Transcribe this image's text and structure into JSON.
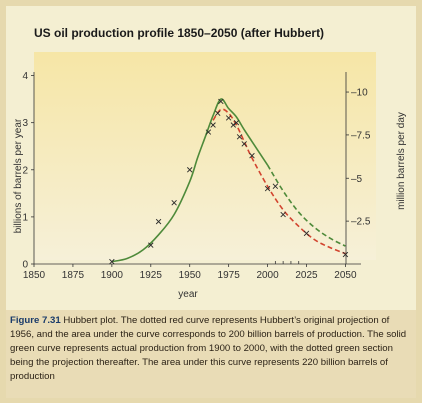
{
  "chart_data": {
    "type": "line",
    "title": "US oil production profile 1850–2050 (after Hubbert)",
    "xlabel": "year",
    "ylabel_left": "billions of barrels per year",
    "ylabel_right": "million barrels per day",
    "xlim": [
      1850,
      2060
    ],
    "ylim": [
      0,
      4.5
    ],
    "x_ticks": [
      1850,
      1875,
      1900,
      1925,
      1950,
      1975,
      2000,
      2025,
      2050
    ],
    "y_ticks_left": [
      0,
      1,
      2,
      3,
      4
    ],
    "y_ticks_right": [
      {
        "label": "–2.5",
        "value": 0.91
      },
      {
        "label": "–5",
        "value": 1.82
      },
      {
        "label": "–7.5",
        "value": 2.74
      },
      {
        "label": "–10",
        "value": 3.65
      }
    ],
    "series": [
      {
        "name": "actual production",
        "color": "#4e8a3a",
        "style": "solid",
        "x": [
          1900,
          1910,
          1920,
          1930,
          1940,
          1950,
          1955,
          1960,
          1965,
          1970,
          1975,
          1980,
          1985,
          1990,
          1995,
          2000
        ],
        "y": [
          0.05,
          0.12,
          0.3,
          0.62,
          1.05,
          1.75,
          2.25,
          2.7,
          3.15,
          3.5,
          3.3,
          3.12,
          2.85,
          2.6,
          2.35,
          2.1
        ]
      },
      {
        "name": "projection after 2000",
        "color": "#4e8a3a",
        "style": "dashed",
        "x": [
          2000,
          2010,
          2020,
          2030,
          2040,
          2050
        ],
        "y": [
          2.1,
          1.55,
          1.1,
          0.78,
          0.55,
          0.38
        ]
      },
      {
        "name": "Hubbert 1956 projection",
        "color": "#d2442f",
        "style": "dashed",
        "x": [
          1965,
          1970,
          1975,
          1980,
          1985,
          1990,
          2000,
          2010,
          2020,
          2030,
          2040,
          2050
        ],
        "y": [
          3.05,
          3.28,
          3.2,
          2.95,
          2.6,
          2.25,
          1.65,
          1.15,
          0.8,
          0.52,
          0.35,
          0.22
        ]
      }
    ],
    "markers": {
      "x": [
        1900,
        1925,
        1930,
        1940,
        1950,
        1962,
        1965,
        1968,
        1970,
        1975,
        1978,
        1980,
        1982,
        1985,
        1990,
        2000,
        2005,
        2010,
        2025,
        2050
      ],
      "y": [
        0.05,
        0.4,
        0.9,
        1.3,
        2.0,
        2.8,
        2.95,
        3.2,
        3.45,
        3.1,
        2.95,
        3.0,
        2.7,
        2.55,
        2.3,
        1.6,
        1.65,
        1.05,
        0.65,
        0.2
      ]
    },
    "extra_ticks_near_axis": [
      2005,
      2010,
      2015,
      2020
    ]
  },
  "caption": {
    "label": "Figure 7.31",
    "text": "Hubbert plot. The dotted red curve represents Hubbert’s original projection of 1956, and the area under the curve corresponds to 200 billion barrels of production. The solid green curve represents actual production from 1900 to 2000, with the dotted green section being the projection thereafter. The area under this curve represents 220 billion barrels of production"
  }
}
